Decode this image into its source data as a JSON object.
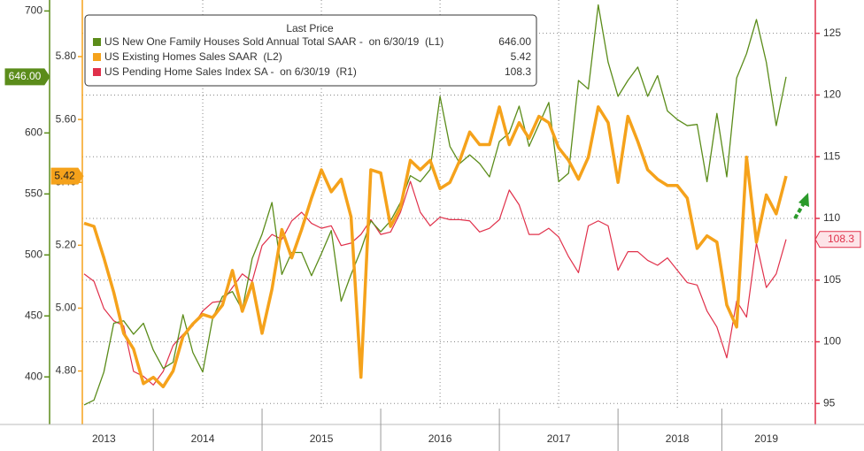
{
  "chart_data": {
    "type": "line",
    "legend_title": "Last Price",
    "legend": "upper left",
    "grid": true,
    "categories": [
      null,
      null,
      "2013",
      null,
      null,
      null,
      null,
      null,
      null,
      null,
      null,
      null,
      "2014",
      null,
      null,
      null,
      null,
      null,
      null,
      null,
      null,
      null,
      null,
      null,
      "2015",
      null,
      null,
      null,
      null,
      null,
      null,
      null,
      null,
      null,
      null,
      null,
      "2016",
      null,
      null,
      null,
      null,
      null,
      null,
      null,
      null,
      null,
      null,
      null,
      "2017",
      null,
      null,
      null,
      null,
      null,
      null,
      null,
      null,
      null,
      null,
      null,
      "2018",
      null,
      null,
      null,
      null,
      null,
      null,
      null,
      null,
      "2019",
      null,
      null
    ],
    "ylim": [
      361,
      709
    ],
    "yticks": [
      400,
      450,
      500,
      550,
      600,
      700
    ],
    "y3lim": [
      4.63,
      5.98
    ],
    "y3ticks": [
      {
        "value": 4.8,
        "label": "4.80"
      },
      {
        "value": 5,
        "label": "5.00"
      },
      {
        "value": 5.2,
        "label": "5.20"
      },
      {
        "value": 5.4,
        "label": "5.40"
      },
      {
        "value": 5.6,
        "label": "5.60"
      },
      {
        "value": 5.8,
        "label": "5.80"
      }
    ],
    "y2lim": [
      93.3,
      127.7
    ],
    "y2ticks": [
      95,
      100,
      105,
      110,
      115,
      120,
      125
    ],
    "series": [
      {
        "name": "US New One Family Houses Sold Annual Total SAAR -  on 6/30/19  (L1)",
        "color": "#5b8c1a",
        "axis": "y",
        "last_label": "646.00",
        "values": [
          377,
          381,
          404,
          444,
          446,
          435,
          444,
          422,
          407,
          412,
          451,
          420,
          404,
          448,
          466,
          470,
          455,
          497,
          517,
          543,
          484,
          502,
          502,
          483,
          501,
          520,
          462,
          484,
          504,
          528,
          519,
          528,
          543,
          565,
          560,
          570,
          630,
          589,
          575,
          582,
          575,
          564,
          593,
          600,
          622,
          589,
          607,
          625,
          560,
          567,
          643,
          636,
          705,
          658,
          630,
          643,
          654,
          630,
          647,
          618,
          611,
          606,
          607,
          560,
          616,
          564,
          645,
          665,
          693,
          658,
          606,
          646
        ]
      },
      {
        "name": "US Existing Homes Sales SAAR  (L2)",
        "color": "#f5a21b",
        "axis": "y3",
        "last_label": "5.42",
        "values": [
          5.27,
          5.26,
          5.16,
          5.05,
          4.92,
          4.87,
          4.76,
          4.78,
          4.75,
          4.8,
          4.91,
          4.95,
          4.98,
          4.97,
          5.01,
          5.12,
          4.99,
          5.08,
          4.92,
          5.06,
          5.25,
          5.16,
          5.25,
          5.35,
          5.44,
          5.37,
          5.41,
          5.29,
          4.78,
          5.44,
          5.43,
          5.26,
          5.32,
          5.47,
          5.44,
          5.47,
          5.38,
          5.4,
          5.47,
          5.56,
          5.52,
          5.52,
          5.64,
          5.52,
          5.59,
          5.54,
          5.61,
          5.59,
          5.51,
          5.47,
          5.41,
          5.48,
          5.64,
          5.59,
          5.4,
          5.61,
          5.53,
          5.44,
          5.41,
          5.39,
          5.39,
          5.35,
          5.19,
          5.23,
          5.21,
          5.01,
          4.94,
          5.48,
          5.21,
          5.36,
          5.3,
          5.42
        ]
      },
      {
        "name": "US Pending Home Sales Index SA -  on 6/30/19  (R1)",
        "color": "#e0304a",
        "axis": "y2",
        "last_label": "108.3",
        "values": [
          105.5,
          104.9,
          102.7,
          101.7,
          101.3,
          97.6,
          97.2,
          96.5,
          97.6,
          99.7,
          100.6,
          101.3,
          102.5,
          103.2,
          103.3,
          104.4,
          105.5,
          104.9,
          107.8,
          108.7,
          108.3,
          109.8,
          110.5,
          109.6,
          109.2,
          109.4,
          107.8,
          108.0,
          108.7,
          109.9,
          108.7,
          108.9,
          110.5,
          113.0,
          110.5,
          109.4,
          110.1,
          109.9,
          109.9,
          109.8,
          108.9,
          109.2,
          109.9,
          112.3,
          111.1,
          108.7,
          108.7,
          109.2,
          108.5,
          106.9,
          105.6,
          109.4,
          109.8,
          109.4,
          105.8,
          107.3,
          107.3,
          106.6,
          106.2,
          106.8,
          105.8,
          104.8,
          104.6,
          102.5,
          101.2,
          98.7,
          103.3,
          102.0,
          108.0,
          104.4,
          105.5,
          108.3
        ]
      }
    ]
  }
}
